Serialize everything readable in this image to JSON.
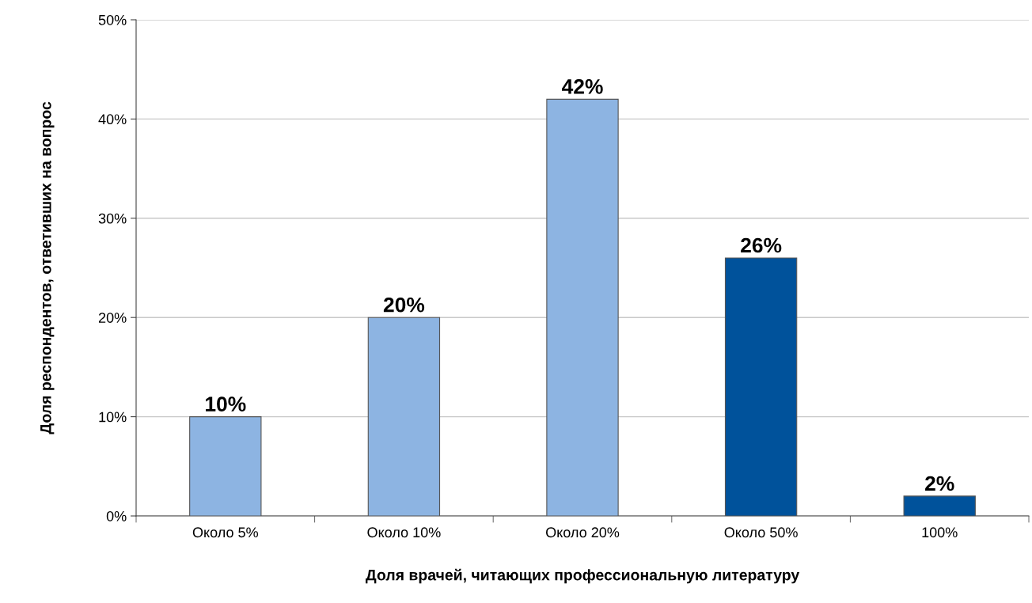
{
  "chart_data": {
    "type": "bar",
    "xlabel": "Доля врачей, читающих профессиональную литературу",
    "ylabel": "Доля респондентов, ответивших на вопрос",
    "categories": [
      "Около 5%",
      "Около 10%",
      "Около 20%",
      "Около 50%",
      "100%"
    ],
    "values": [
      10,
      20,
      42,
      26,
      2
    ],
    "colors": [
      "#8db4e2",
      "#8db4e2",
      "#8db4e2",
      "#00529b",
      "#00529b"
    ],
    "value_labels": [
      "10%",
      "20%",
      "42%",
      "26%",
      "2%"
    ],
    "ylim": [
      0,
      50
    ],
    "yticks": [
      {
        "value": 0,
        "label": "0%"
      },
      {
        "value": 10,
        "label": "10%"
      },
      {
        "value": 20,
        "label": "20%"
      },
      {
        "value": 30,
        "label": "30%"
      },
      {
        "value": 40,
        "label": "40%"
      },
      {
        "value": 50,
        "label": "50%"
      }
    ],
    "grid": "y",
    "legend": false
  }
}
